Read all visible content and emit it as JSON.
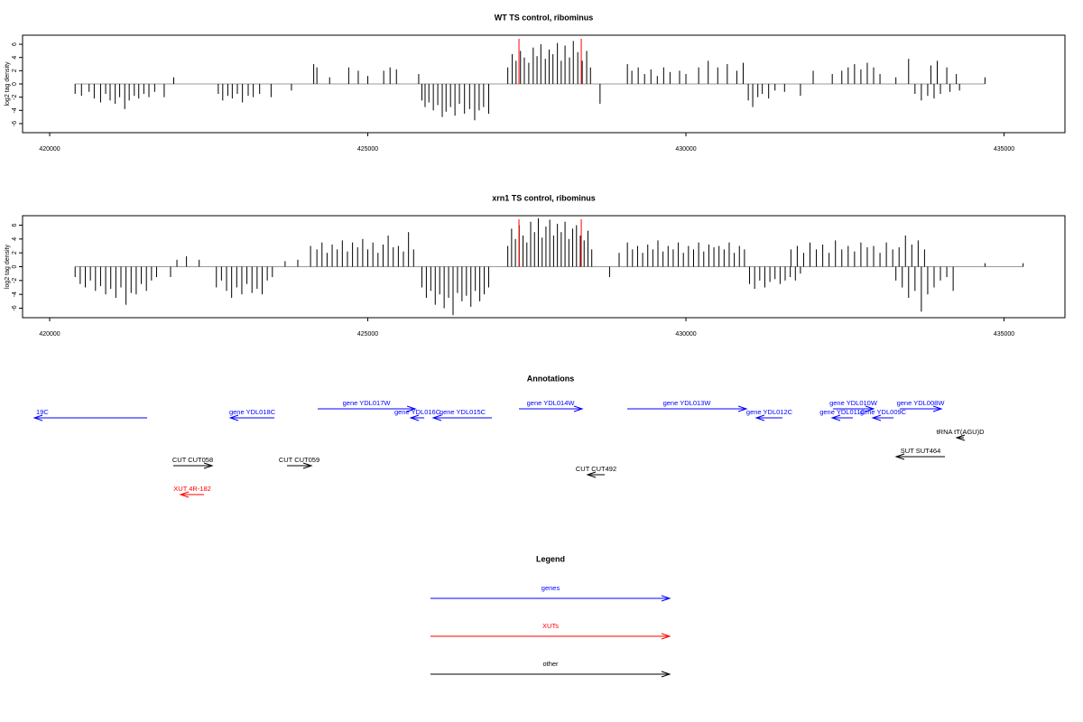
{
  "chart_data": [
    {
      "type": "bar",
      "title": "WT TS control, ribominus",
      "y_label": "log2 tag density",
      "color": "#000000",
      "zero_line_color": "#999999",
      "xlim": [
        419574,
        435957
      ],
      "xticks": [
        420000,
        425000,
        430000,
        435000
      ],
      "ylim": [
        -7.37,
        7.37
      ],
      "yticks": [
        -6,
        -4,
        -2,
        0,
        2,
        4,
        6
      ],
      "marker_x": [
        427376,
        428355
      ],
      "marker_color": "#ff0000",
      "x": [
        420400,
        420500,
        420620,
        420700,
        420800,
        420880,
        420950,
        421030,
        421100,
        421180,
        421250,
        421330,
        421400,
        421480,
        421560,
        421650,
        421800,
        421950,
        422650,
        422720,
        422800,
        422870,
        422950,
        423030,
        423120,
        423200,
        423300,
        423480,
        423800,
        424150,
        424200,
        424400,
        424700,
        424850,
        425000,
        425250,
        425350,
        425450,
        425800,
        425850,
        425900,
        425960,
        426030,
        426100,
        426170,
        426230,
        426300,
        426370,
        426440,
        426520,
        426600,
        426680,
        426750,
        426820,
        426900,
        427200,
        427270,
        427330,
        427400,
        427460,
        427530,
        427600,
        427660,
        427720,
        427790,
        427850,
        427910,
        427980,
        428040,
        428100,
        428170,
        428230,
        428300,
        428370,
        428440,
        428500,
        428650,
        429080,
        429150,
        429250,
        429350,
        429450,
        429550,
        429650,
        429750,
        429900,
        430000,
        430200,
        430350,
        430500,
        430650,
        430800,
        430900,
        430980,
        431050,
        431130,
        431200,
        431300,
        431400,
        431550,
        431800,
        432000,
        432300,
        432450,
        432550,
        432650,
        432750,
        432850,
        432950,
        433050,
        433300,
        433500,
        433600,
        433700,
        433800,
        433850,
        433900,
        433950,
        434000,
        434100,
        434150,
        434250,
        434300,
        434700
      ],
      "values": [
        -1.5,
        -1.8,
        -1.2,
        -2.2,
        -2.8,
        -1.5,
        -2.5,
        -3.0,
        -2.0,
        -3.8,
        -2.5,
        -1.8,
        -2.2,
        -1.5,
        -2.0,
        -1.2,
        -2.0,
        1.0,
        -1.5,
        -2.5,
        -1.8,
        -2.2,
        -1.5,
        -2.8,
        -1.8,
        -2.0,
        -1.5,
        -2.0,
        -1.0,
        3.0,
        2.5,
        1.0,
        2.5,
        2.0,
        1.2,
        2.0,
        2.5,
        2.2,
        1.5,
        -2.5,
        -3.5,
        -2.8,
        -4.0,
        -3.2,
        -5.0,
        -4.2,
        -3.5,
        -4.8,
        -3.0,
        -4.5,
        -3.8,
        -5.5,
        -4.0,
        -3.5,
        -4.5,
        2.5,
        4.5,
        3.5,
        5.0,
        4.0,
        3.2,
        5.5,
        4.2,
        6.0,
        3.8,
        5.2,
        4.5,
        6.2,
        3.5,
        5.8,
        4.0,
        6.5,
        4.8,
        3.5,
        5.0,
        2.5,
        -3.0,
        3.0,
        2.0,
        2.5,
        1.5,
        2.2,
        1.2,
        2.5,
        1.8,
        2.0,
        1.5,
        2.5,
        3.5,
        2.5,
        3.0,
        2.0,
        3.2,
        -2.5,
        -3.5,
        -2.0,
        -1.5,
        -2.2,
        -1.0,
        -1.2,
        -1.8,
        2.0,
        1.5,
        2.0,
        2.5,
        3.0,
        2.2,
        3.2,
        2.5,
        1.5,
        1.0,
        3.8,
        -1.5,
        -2.5,
        -1.8,
        2.8,
        -2.2,
        3.5,
        -1.5,
        2.5,
        -1.2,
        1.5,
        -1.0,
        1.0
      ]
    },
    {
      "type": "bar",
      "title": "xrn1 TS control, ribominus",
      "y_label": "log2 tag density",
      "color": "#000000",
      "zero_line_color": "#999999",
      "xlim": [
        419574,
        435957
      ],
      "xticks": [
        420000,
        425000,
        430000,
        435000
      ],
      "ylim": [
        -7.37,
        7.37
      ],
      "yticks": [
        -6,
        -4,
        -2,
        0,
        2,
        4,
        6
      ],
      "marker_x": [
        427376,
        428355
      ],
      "marker_color": "#ff0000",
      "x": [
        420400,
        420480,
        420560,
        420640,
        420720,
        420800,
        420880,
        420960,
        421040,
        421120,
        421200,
        421280,
        421360,
        421440,
        421520,
        421600,
        421680,
        421900,
        422000,
        422150,
        422350,
        422620,
        422700,
        422780,
        422860,
        422940,
        423020,
        423100,
        423180,
        423260,
        423340,
        423420,
        423500,
        423700,
        423900,
        424100,
        424200,
        424280,
        424360,
        424440,
        424520,
        424600,
        424680,
        424760,
        424840,
        424920,
        425000,
        425080,
        425160,
        425240,
        425320,
        425400,
        425480,
        425560,
        425640,
        425720,
        425850,
        425920,
        425990,
        426060,
        426130,
        426200,
        426270,
        426340,
        426410,
        426480,
        426550,
        426620,
        426690,
        426760,
        426830,
        426900,
        427200,
        427260,
        427320,
        427380,
        427440,
        427500,
        427560,
        427620,
        427680,
        427740,
        427800,
        427860,
        427920,
        427980,
        428040,
        428100,
        428160,
        428220,
        428280,
        428340,
        428400,
        428460,
        428520,
        428800,
        428950,
        429080,
        429160,
        429240,
        429320,
        429400,
        429480,
        429560,
        429640,
        429720,
        429800,
        429880,
        429960,
        430040,
        430120,
        430200,
        430280,
        430360,
        430440,
        430520,
        430600,
        430680,
        430760,
        430840,
        430920,
        431000,
        431080,
        431160,
        431240,
        431320,
        431400,
        431480,
        431560,
        431640,
        431720,
        431800,
        431650,
        431750,
        431850,
        431950,
        432050,
        432150,
        432250,
        432350,
        432450,
        432550,
        432650,
        432750,
        432850,
        432950,
        433050,
        433150,
        433250,
        433350,
        433450,
        433550,
        433650,
        433750,
        433300,
        433400,
        433500,
        433600,
        433700,
        433800,
        433900,
        434000,
        434100,
        434200,
        434700,
        435300
      ],
      "values": [
        -1.5,
        -2.5,
        -3.0,
        -2.0,
        -3.5,
        -2.8,
        -4.0,
        -3.2,
        -4.5,
        -3.0,
        -5.5,
        -3.8,
        -4.0,
        -2.5,
        -3.5,
        -2.0,
        -1.5,
        -1.5,
        1.0,
        1.5,
        1.0,
        -3.0,
        -2.0,
        -3.5,
        -4.5,
        -3.0,
        -4.0,
        -2.5,
        -3.8,
        -3.2,
        -4.0,
        -2.0,
        -1.5,
        0.8,
        1.0,
        3.0,
        2.5,
        3.5,
        2.0,
        3.2,
        2.5,
        3.8,
        2.2,
        3.5,
        2.8,
        4.0,
        2.5,
        3.5,
        2.0,
        3.2,
        4.5,
        2.8,
        3.0,
        2.2,
        5.0,
        2.5,
        -3.0,
        -4.5,
        -3.5,
        -5.5,
        -4.0,
        -6.0,
        -4.5,
        -7.0,
        -3.8,
        -5.0,
        -4.2,
        -5.8,
        -3.5,
        -5.0,
        -4.0,
        -3.0,
        3.0,
        5.5,
        4.0,
        6.0,
        4.5,
        3.5,
        6.5,
        5.0,
        7.0,
        4.2,
        5.8,
        6.8,
        4.5,
        6.2,
        5.0,
        6.5,
        4.0,
        5.5,
        6.0,
        4.5,
        3.8,
        5.2,
        2.5,
        -1.5,
        2.0,
        3.5,
        2.5,
        3.0,
        2.0,
        3.2,
        2.5,
        3.8,
        2.2,
        3.0,
        2.5,
        3.5,
        2.0,
        3.0,
        2.5,
        3.5,
        2.2,
        3.2,
        2.8,
        3.0,
        2.5,
        3.5,
        2.0,
        3.0,
        2.5,
        -2.5,
        -3.2,
        -2.0,
        -3.0,
        -2.2,
        -1.8,
        -2.5,
        -2.0,
        -1.5,
        -2.0,
        -1.0,
        2.5,
        3.0,
        2.0,
        3.5,
        2.5,
        3.2,
        2.0,
        3.8,
        2.5,
        3.0,
        2.2,
        3.5,
        2.8,
        3.0,
        2.0,
        3.5,
        2.5,
        2.8,
        4.5,
        3.2,
        3.8,
        2.5,
        -2.0,
        -3.0,
        -4.5,
        -3.5,
        -6.5,
        -4.0,
        -3.0,
        -2.0,
        -1.5,
        -3.5,
        0.5,
        0.5
      ]
    }
  ],
  "annotations": {
    "title": "Annotations",
    "xlim": [
      419574,
      435957
    ],
    "features": [
      {
        "label": "19C",
        "start": 419759,
        "end": 421532,
        "strand": "-",
        "color": "#0000ff"
      },
      {
        "label": "gene YDL018C",
        "start": 422837,
        "end": 423532,
        "strand": "-",
        "color": "#0000ff"
      },
      {
        "label": "gene YDL017W",
        "start": 424213,
        "end": 425745,
        "strand": "+",
        "color": "#0000ff"
      },
      {
        "label": "gene YDL016C",
        "start": 425674,
        "end": 425887,
        "strand": "-",
        "color": "#0000ff"
      },
      {
        "label": "gene YDL015C",
        "start": 426028,
        "end": 426950,
        "strand": "-",
        "color": "#0000ff"
      },
      {
        "label": "gene YDL014W",
        "start": 427376,
        "end": 428369,
        "strand": "+",
        "color": "#0000ff"
      },
      {
        "label": "gene YDL013W",
        "start": 429078,
        "end": 430950,
        "strand": "+",
        "color": "#0000ff"
      },
      {
        "label": "gene YDL012C",
        "start": 431106,
        "end": 431517,
        "strand": "-",
        "color": "#0000ff"
      },
      {
        "label": "gene YDL010W",
        "start": 432312,
        "end": 432950,
        "strand": "+",
        "color": "#0000ff"
      },
      {
        "label": "gene YDL011C",
        "start": 432298,
        "end": 432624,
        "strand": "-",
        "color": "#0000ff"
      },
      {
        "label": "gene YDL009C",
        "start": 432936,
        "end": 433262,
        "strand": "-",
        "color": "#0000ff"
      },
      {
        "label": "gene YDL008W",
        "start": 433361,
        "end": 434014,
        "strand": "+",
        "color": "#0000ff"
      },
      {
        "label": "tRNA tT(AGU)D",
        "start": 434255,
        "end": 434369,
        "strand": "-",
        "color": "#000000"
      },
      {
        "label": "SUT SUT464",
        "start": 433305,
        "end": 434071,
        "strand": "-",
        "color": "#000000"
      },
      {
        "label": "CUT CUT058",
        "start": 421943,
        "end": 422553,
        "strand": "+",
        "color": "#000000"
      },
      {
        "label": "CUT CUT059",
        "start": 423730,
        "end": 424113,
        "strand": "+",
        "color": "#000000"
      },
      {
        "label": "CUT CUT492",
        "start": 428454,
        "end": 428723,
        "strand": "-",
        "color": "#000000"
      },
      {
        "label": "XUT 4R-182",
        "start": 422057,
        "end": 422426,
        "strand": "-",
        "color": "#ff0000"
      }
    ]
  },
  "legend": {
    "title": "Legend",
    "entries": [
      {
        "label": "genes",
        "color": "#0000ff"
      },
      {
        "label": "XUTs",
        "color": "#ff0000"
      },
      {
        "label": "other",
        "color": "#000000"
      }
    ]
  }
}
